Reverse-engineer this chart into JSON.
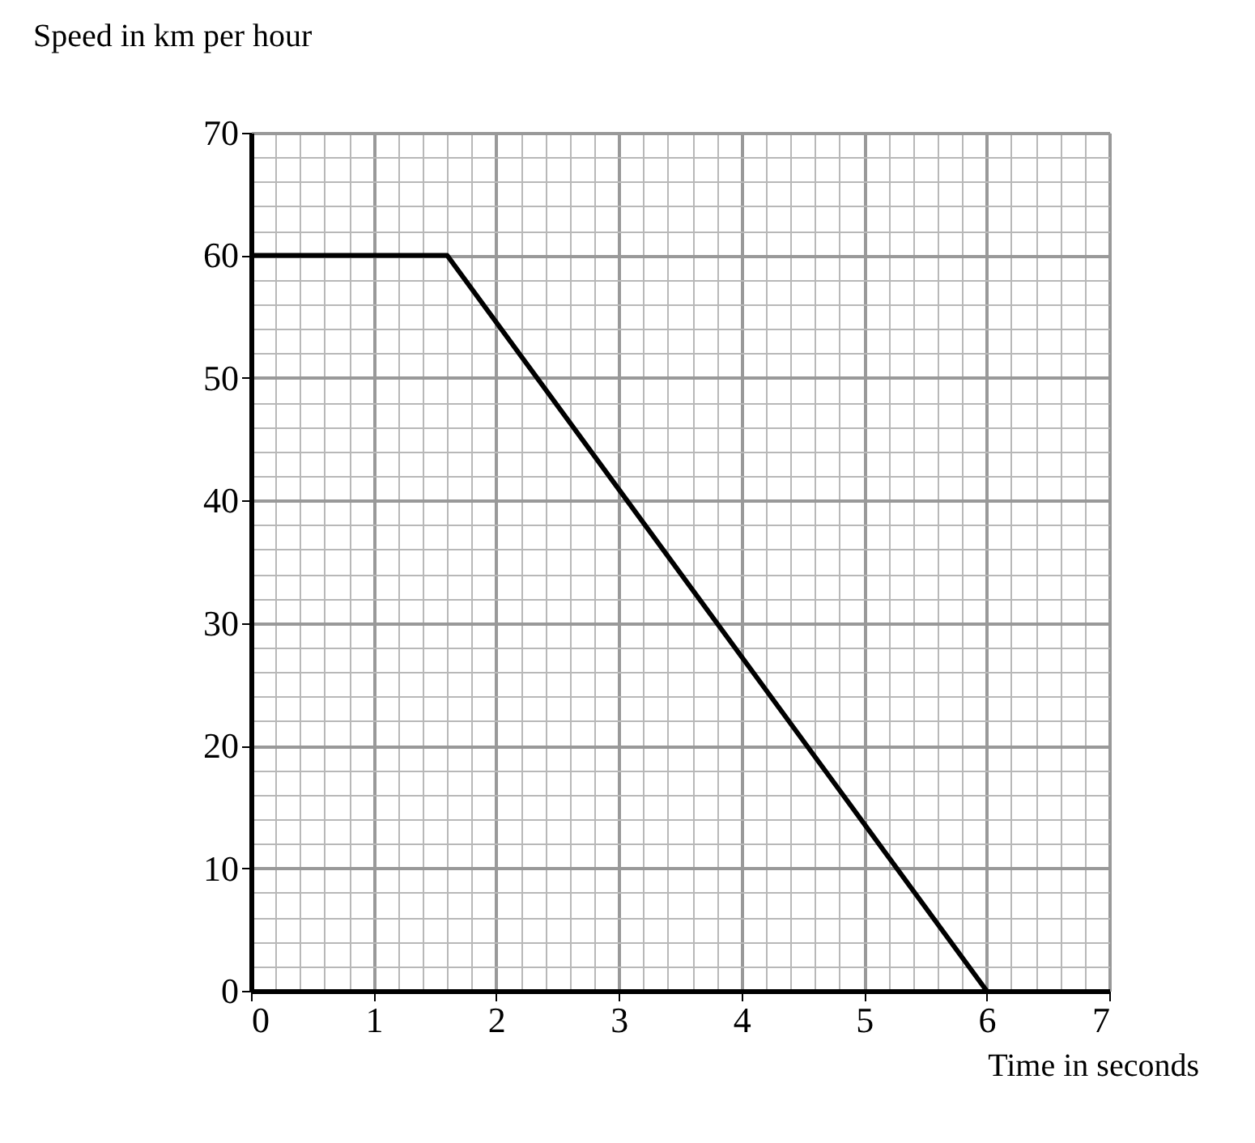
{
  "chart_data": {
    "type": "line",
    "xlabel": "Time in seconds",
    "ylabel": "Speed in km per hour",
    "x": [
      0,
      1.6,
      6
    ],
    "series": [
      {
        "color": "#000000",
        "values": [
          60,
          60,
          0
        ]
      }
    ],
    "xlim": [
      0,
      7
    ],
    "xticks": [
      0,
      1,
      2,
      3,
      4,
      5,
      6,
      7
    ],
    "ylim": [
      0,
      70
    ],
    "yticks": [
      0,
      10,
      20,
      30,
      40,
      50,
      60,
      70
    ],
    "grid": true,
    "marker": "none",
    "line_style": "solid"
  }
}
